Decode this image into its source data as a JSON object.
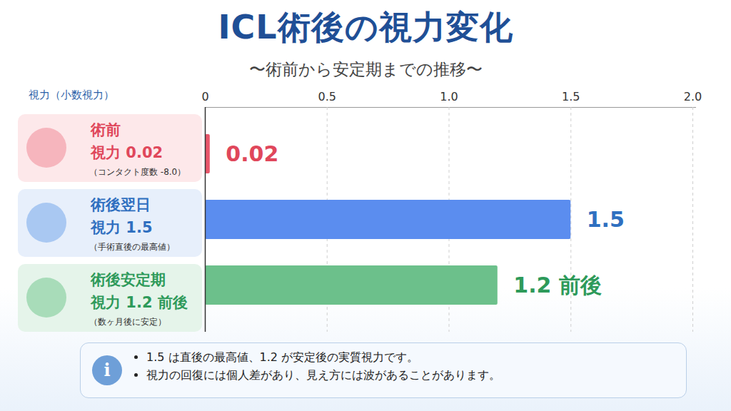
{
  "chart_data": {
    "type": "bar",
    "orientation": "horizontal",
    "title": "ICL術後の視力変化",
    "subtitle": "〜術前から安定期までの推移〜",
    "xlabel": "視力（小数視力）",
    "categories": [
      "術前",
      "術後翌日",
      "術後安定期"
    ],
    "values": [
      0.02,
      1.5,
      1.2
    ],
    "value_labels": [
      "0.02",
      "1.5",
      "1.2 前後"
    ],
    "data_labels": true,
    "colors": [
      "#e8566a",
      "#5b8def",
      "#6cc08b"
    ],
    "category_labels": [
      "視力 0.02",
      "視力 1.5",
      "視力 1.2 前後"
    ],
    "category_notes": [
      "（コンタクト度数 -8.0）",
      "（手術直後の最高値）",
      "（数ヶ月後に安定）"
    ],
    "xlim": [
      0,
      2
    ],
    "xticks": [
      0,
      0.5,
      {
        "value": 1,
        "label": "1.0"
      },
      1.5,
      {
        "value": 2,
        "label": "2.0"
      }
    ],
    "grid": true,
    "tick_labels": "x",
    "notes": [
      "1.5 は直後の最高値、1.2 が安定後の実質視力です。",
      "視力の回復には個人差があり、見え方には波があることがあります。"
    ]
  }
}
